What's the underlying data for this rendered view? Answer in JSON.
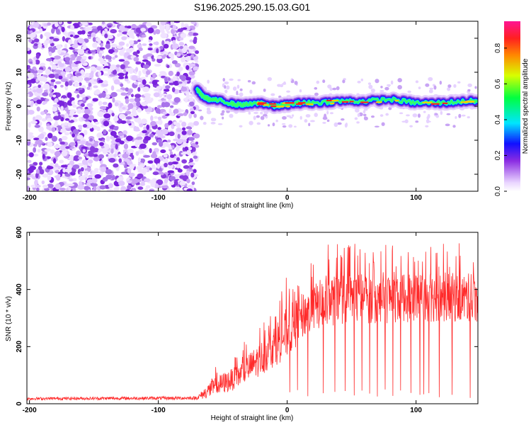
{
  "title": "S196.2025.290.15.03.G01",
  "chart_data": [
    {
      "type": "heatmap",
      "xlabel": "Height of straight line (km)",
      "ylabel": "Frequency (Hz)",
      "xlim": [
        -202,
        148
      ],
      "ylim": [
        -25,
        25
      ],
      "x_ticks": [
        "-200",
        "-100",
        "0",
        "100"
      ],
      "y_ticks": [
        "20",
        "10",
        "0",
        "-10",
        "-20"
      ],
      "noise_region": {
        "x": [
          -202,
          -70
        ],
        "y": [
          -25,
          25
        ]
      },
      "signal_track": [
        {
          "x": -70,
          "y": 5
        },
        {
          "x": -66,
          "y": 3
        },
        {
          "x": -60,
          "y": 2
        },
        {
          "x": -50,
          "y": 1.5
        },
        {
          "x": -40,
          "y": 0.5
        },
        {
          "x": -30,
          "y": 0.5
        },
        {
          "x": -20,
          "y": 1
        },
        {
          "x": -10,
          "y": 0
        },
        {
          "x": 0,
          "y": 0.5
        },
        {
          "x": 10,
          "y": 1
        },
        {
          "x": 20,
          "y": 1
        },
        {
          "x": 40,
          "y": 1.5
        },
        {
          "x": 60,
          "y": 1.5
        },
        {
          "x": 80,
          "y": 2
        },
        {
          "x": 100,
          "y": 1
        },
        {
          "x": 120,
          "y": 1
        },
        {
          "x": 140,
          "y": 1.5
        },
        {
          "x": 148,
          "y": 1.5
        }
      ],
      "colorbar": {
        "label": "Normalized spectral amplitude",
        "ticks": [
          "0.0",
          "0.2",
          "0.4",
          "0.6",
          "0.8"
        ],
        "range": [
          0,
          0.95
        ],
        "colors": [
          "#ffffff",
          "#ead6ff",
          "#8a2be2",
          "#1010ff",
          "#00e5ff",
          "#00ff40",
          "#d8ff00",
          "#ff8800",
          "#ff2020",
          "#ff1493"
        ]
      }
    },
    {
      "type": "line",
      "xlabel": "Height of straight line (km)",
      "ylabel": "SNR (10 * v/v)",
      "xlim": [
        -202,
        148
      ],
      "ylim": [
        0,
        600
      ],
      "x_ticks": [
        "-200",
        "-100",
        "0",
        "100"
      ],
      "y_ticks": [
        "600",
        "400",
        "200",
        "0"
      ],
      "series": [
        {
          "color": "#ff2a2a",
          "envelope": [
            {
              "x": -202,
              "base": 18,
              "amp": 10
            },
            {
              "x": -70,
              "base": 20,
              "amp": 12
            },
            {
              "x": -58,
              "base": 55,
              "amp": 70
            },
            {
              "x": -40,
              "base": 90,
              "amp": 80
            },
            {
              "x": -20,
              "base": 160,
              "amp": 120
            },
            {
              "x": 0,
              "base": 250,
              "amp": 180
            },
            {
              "x": 15,
              "base": 320,
              "amp": 160
            },
            {
              "x": 30,
              "base": 360,
              "amp": 180
            },
            {
              "x": 60,
              "base": 370,
              "amp": 180
            },
            {
              "x": 100,
              "base": 375,
              "amp": 180
            },
            {
              "x": 148,
              "base": 370,
              "amp": 170
            }
          ],
          "dropouts_x": [
            2,
            8,
            16,
            28,
            37,
            45,
            52,
            58,
            64,
            70,
            76,
            82,
            88,
            96,
            103,
            106,
            110,
            118,
            128,
            142
          ]
        }
      ]
    }
  ]
}
